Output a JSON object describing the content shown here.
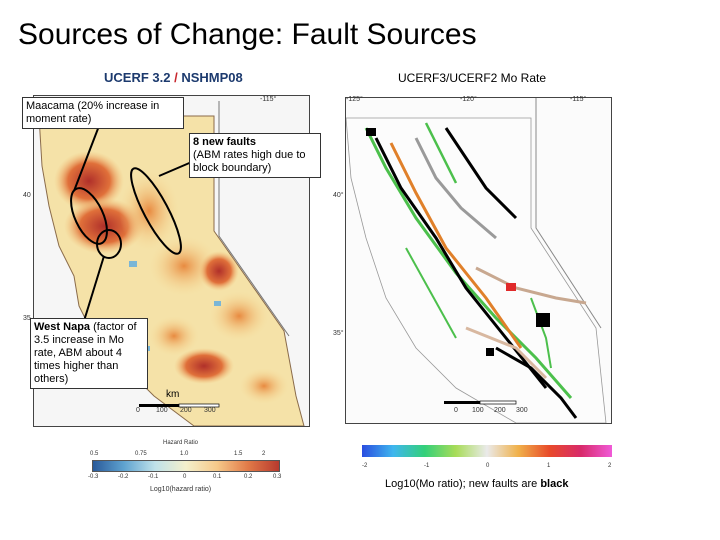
{
  "slide": {
    "title": "Sources of Change: Fault Sources"
  },
  "left_map": {
    "title_part1": "UCERF 3.2",
    "title_sep": " / ",
    "title_part2": "NSHMP08",
    "lon_label": "-115°",
    "lat_label_40": "40",
    "lat_label_35": "35",
    "scale_unit": "km",
    "scale_ticks": [
      "0",
      "100",
      "200",
      "300"
    ],
    "hazard_title": "Hazard Ratio",
    "hazard_ticks_top": [
      "0.5",
      "0.75",
      "1.0",
      "1.5",
      "2"
    ],
    "hazard_ticks_bottom": [
      "-0.3",
      "-0.2",
      "-0.1",
      "0",
      "0.1",
      "0.2",
      "0.3"
    ],
    "hazard_axis": "Log10(hazard ratio)"
  },
  "right_map": {
    "title": "UCERF3/UCERF2 Mo Rate",
    "lon_labels": [
      "-125°",
      "-120°",
      "-115°"
    ],
    "lat_label_40": "40°",
    "lat_label_35": "35°",
    "scale_ticks": [
      "0",
      "100",
      "200",
      "300"
    ],
    "colorbar_ticks": [
      "-2",
      "-1",
      "0",
      "1",
      "2"
    ],
    "colorbar_label_text": "Log10(Mo ratio); new faults are ",
    "colorbar_label_bold": "black"
  },
  "callouts": {
    "maacama_name": "Maacama",
    "maacama_text": " (20% increase in moment rate)",
    "new_faults_title": "8 new faults",
    "new_faults_text": "(ABM rates high due to block boundary)",
    "west_napa_name": "West Napa",
    "west_napa_text": " (factor of 3.5 increase in Mo rate, ABM about 4 times higher than others)"
  },
  "colors": {
    "left_title": "#1c3a6e",
    "left_title_sep": "#c8262d",
    "map_background": "#f6f6f6"
  }
}
